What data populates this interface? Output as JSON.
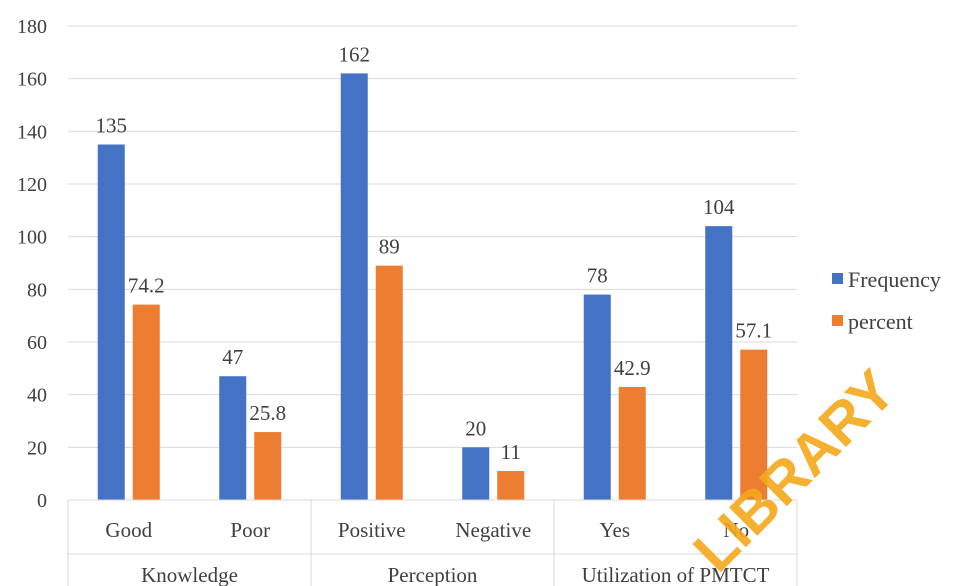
{
  "chart_data": {
    "type": "bar",
    "title": "",
    "xlabel": "",
    "ylabel": "",
    "ylim": [
      0,
      180
    ],
    "yticks": [
      0,
      20,
      40,
      60,
      80,
      100,
      120,
      140,
      160,
      180
    ],
    "grid": true,
    "legend_position": "right",
    "categories": [
      "Good",
      "Poor",
      "Positive",
      "Negative",
      "Yes",
      "No"
    ],
    "groups": [
      {
        "label": "Knowledge",
        "categories": [
          "Good",
          "Poor"
        ]
      },
      {
        "label": "Perception",
        "categories": [
          "Positive",
          "Negative"
        ]
      },
      {
        "label": "Utilization of PMTCT",
        "categories": [
          "Yes",
          "No"
        ]
      }
    ],
    "series": [
      {
        "name": "Frequency",
        "color": "#4472c4",
        "values": [
          135,
          47,
          162,
          20,
          78,
          104
        ],
        "labels": [
          "135",
          "47",
          "162",
          "20",
          "78",
          "104"
        ]
      },
      {
        "name": "percent",
        "color": "#ed7d31",
        "values": [
          74.2,
          25.8,
          89,
          11,
          42.9,
          57.1
        ],
        "labels": [
          "74.2",
          "25.8",
          "89",
          "11",
          "42.9",
          "57.1"
        ]
      }
    ]
  },
  "watermark": "LIBRARY"
}
